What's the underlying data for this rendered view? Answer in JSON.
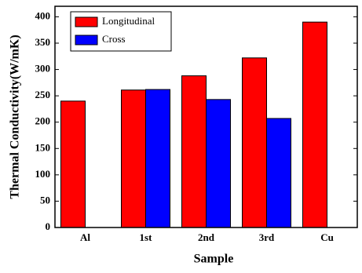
{
  "chart_data": {
    "type": "bar",
    "y_label": "Thermal Conductivity(W/mK)",
    "x_label": "Sample",
    "categories": [
      "Al",
      "1st",
      "2nd",
      "3rd",
      "Cu"
    ],
    "series": [
      {
        "name": "Longitudinal",
        "color": "#ff0000",
        "values": [
          240,
          261,
          288,
          322,
          390
        ]
      },
      {
        "name": "Cross",
        "color": "#0000ff",
        "values": [
          null,
          262,
          243,
          207,
          null
        ]
      }
    ],
    "ylim": [
      0,
      420
    ],
    "yticks": [
      0,
      50,
      100,
      150,
      200,
      250,
      300,
      350,
      400
    ],
    "legend": "upper left"
  }
}
